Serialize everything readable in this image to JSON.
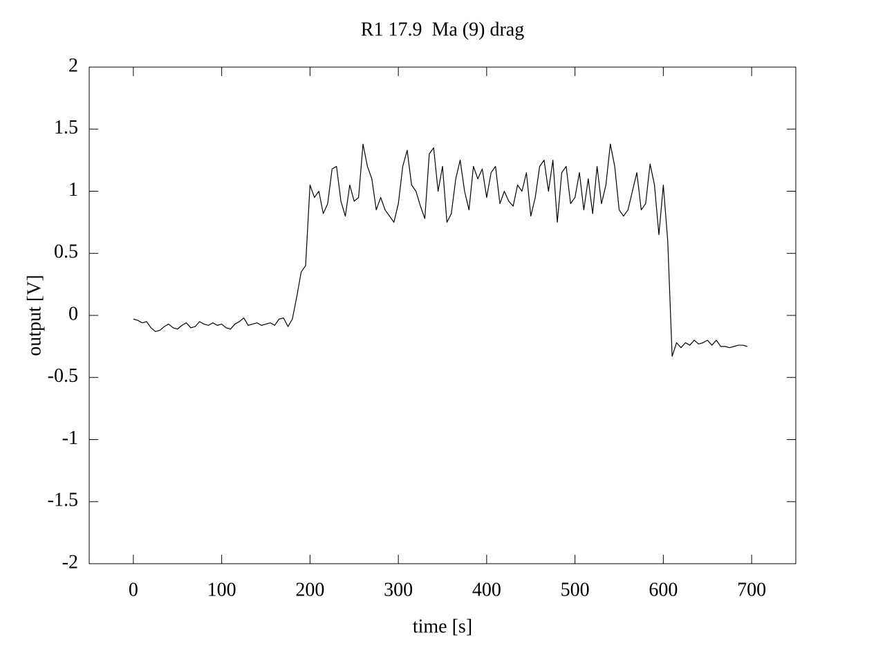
{
  "chart_data": {
    "type": "line",
    "title": "R1 17.9  Ma (9) drag",
    "x_label": "time [s]",
    "y_label": "output [V]",
    "xlim": [
      -50,
      750
    ],
    "ylim": [
      -2,
      2
    ],
    "xticks": [
      0,
      100,
      200,
      300,
      400,
      500,
      600,
      700
    ],
    "yticks": [
      -2,
      -1.5,
      -1,
      -0.5,
      0,
      0.5,
      1,
      1.5,
      2
    ],
    "grid": false,
    "series": [
      {
        "color": "#000000",
        "x": [
          0,
          5,
          10,
          15,
          20,
          25,
          30,
          35,
          40,
          45,
          50,
          55,
          60,
          65,
          70,
          75,
          80,
          85,
          90,
          95,
          100,
          105,
          110,
          115,
          120,
          125,
          130,
          135,
          140,
          145,
          150,
          155,
          160,
          165,
          170,
          175,
          180,
          185,
          190,
          195,
          200,
          205,
          210,
          215,
          220,
          225,
          230,
          235,
          240,
          245,
          250,
          255,
          260,
          265,
          270,
          275,
          280,
          285,
          290,
          295,
          300,
          305,
          310,
          315,
          320,
          325,
          330,
          335,
          340,
          345,
          350,
          355,
          360,
          365,
          370,
          375,
          380,
          385,
          390,
          395,
          400,
          405,
          410,
          415,
          420,
          425,
          430,
          435,
          440,
          445,
          450,
          455,
          460,
          465,
          470,
          475,
          480,
          485,
          490,
          495,
          500,
          505,
          510,
          515,
          520,
          525,
          530,
          535,
          540,
          545,
          550,
          555,
          560,
          565,
          570,
          575,
          580,
          585,
          590,
          595,
          600,
          605,
          610,
          615,
          620,
          625,
          630,
          635,
          640,
          645,
          650,
          655,
          660,
          665,
          670,
          675,
          680,
          685,
          690,
          695
        ],
        "values": [
          -0.03,
          -0.04,
          -0.06,
          -0.05,
          -0.1,
          -0.13,
          -0.12,
          -0.09,
          -0.07,
          -0.1,
          -0.11,
          -0.08,
          -0.06,
          -0.1,
          -0.09,
          -0.05,
          -0.07,
          -0.08,
          -0.06,
          -0.08,
          -0.07,
          -0.1,
          -0.11,
          -0.07,
          -0.05,
          -0.02,
          -0.08,
          -0.07,
          -0.06,
          -0.08,
          -0.07,
          -0.06,
          -0.08,
          -0.03,
          -0.02,
          -0.09,
          -0.03,
          0.15,
          0.35,
          0.4,
          1.05,
          0.95,
          1.0,
          0.82,
          0.9,
          1.18,
          1.2,
          0.92,
          0.8,
          1.05,
          0.92,
          0.95,
          1.38,
          1.2,
          1.1,
          0.85,
          0.95,
          0.85,
          0.8,
          0.75,
          0.9,
          1.2,
          1.33,
          1.05,
          1.0,
          0.88,
          0.78,
          1.3,
          1.35,
          1.0,
          1.2,
          0.75,
          0.82,
          1.1,
          1.25,
          1.0,
          0.85,
          1.2,
          1.1,
          1.18,
          0.95,
          1.15,
          1.2,
          0.9,
          1.0,
          0.92,
          0.88,
          1.05,
          1.0,
          1.15,
          0.8,
          0.95,
          1.2,
          1.25,
          1.0,
          1.25,
          0.75,
          1.15,
          1.2,
          0.9,
          0.95,
          1.15,
          0.85,
          1.1,
          0.82,
          1.2,
          0.9,
          1.05,
          1.38,
          1.2,
          0.85,
          0.8,
          0.85,
          1.0,
          1.15,
          0.85,
          0.9,
          1.22,
          1.05,
          0.65,
          1.05,
          0.6,
          -0.33,
          -0.22,
          -0.26,
          -0.22,
          -0.24,
          -0.2,
          -0.23,
          -0.22,
          -0.2,
          -0.24,
          -0.2,
          -0.25,
          -0.25,
          -0.26,
          -0.25,
          -0.24,
          -0.24,
          -0.25
        ]
      }
    ]
  }
}
